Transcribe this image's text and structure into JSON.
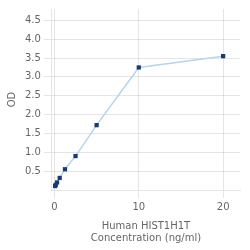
{
  "chart_data": {
    "type": "line",
    "xlabel": "Human HIST1H1T\nConcentration (ng/ml)",
    "ylabel": "OD",
    "x": [
      0.078,
      0.156,
      0.313,
      0.625,
      1.25,
      2.5,
      5,
      10,
      20
    ],
    "series": [
      {
        "type": "line",
        "color": "#b8d4e8",
        "values": [
          0.105,
          0.14,
          0.2,
          0.32,
          0.55,
          0.9,
          1.72,
          3.25,
          3.55
        ]
      },
      {
        "type": "scatter",
        "color": "#1a3a6e",
        "marker": "square",
        "values": [
          0.105,
          0.14,
          0.2,
          0.32,
          0.55,
          0.9,
          1.72,
          3.25,
          3.55
        ]
      }
    ],
    "xlim": [
      -0.3,
      22
    ],
    "xticks": [
      0,
      10,
      20
    ],
    "ylim": [
      0,
      4.8
    ],
    "yticks": [
      0.5,
      {
        "value": 1.0,
        "label": "1.0"
      },
      1.5,
      {
        "value": 2.0,
        "label": "2.0"
      },
      2.5,
      {
        "value": 3.0,
        "label": "3.0"
      },
      3.5,
      {
        "value": 4.0,
        "label": "4.0"
      },
      4.5
    ],
    "grid": true
  }
}
